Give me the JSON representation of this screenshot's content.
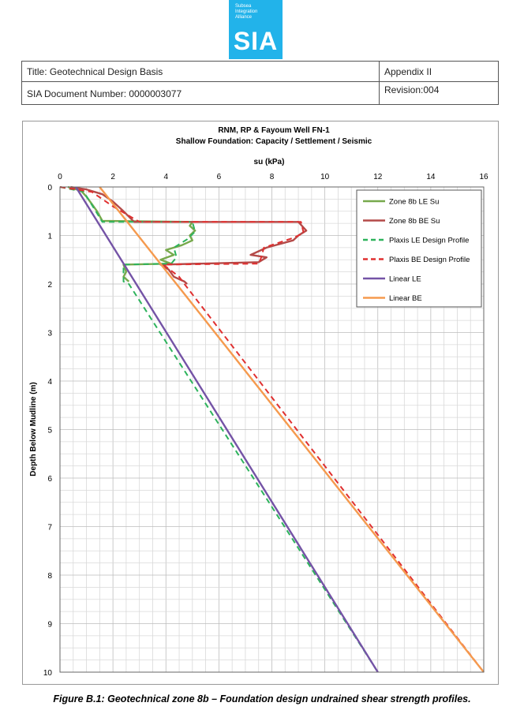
{
  "logo": {
    "small_lines": [
      "Subsea",
      "Integration",
      "Alliance"
    ],
    "big_text": "SIA"
  },
  "header": {
    "title": "Title: Geotechnical Design Basis",
    "appendix": "Appendix II",
    "doc_number": "SIA Document Number: 0000003077",
    "revision": "Revision:004"
  },
  "chart_data": {
    "type": "line",
    "title": "RNM, RP & Fayoum Well FN-1",
    "subtitle": "Shallow Foundation: Capacity / Settlement / Seismic",
    "xlabel": "su (kPa)",
    "ylabel": "Depth Below Mudline (m)",
    "xlim": [
      0,
      16
    ],
    "ylim": [
      10,
      0
    ],
    "x_axis_position": "top",
    "y_inverted": true,
    "x_ticks": [
      0,
      2,
      4,
      6,
      8,
      10,
      12,
      14,
      16
    ],
    "y_ticks": [
      0,
      1,
      2,
      3,
      4,
      5,
      6,
      7,
      8,
      9,
      10
    ],
    "grid": true,
    "legend_position": "top-right",
    "series": [
      {
        "name": "Zone 8b LE Su",
        "color": "#77a94c",
        "style": "solid",
        "points": [
          [
            0.3,
            0
          ],
          [
            0.8,
            0.08
          ],
          [
            1.0,
            0.2
          ],
          [
            1.2,
            0.35
          ],
          [
            1.4,
            0.5
          ],
          [
            1.6,
            0.7
          ],
          [
            5.0,
            0.72
          ],
          [
            4.9,
            0.8
          ],
          [
            5.1,
            0.9
          ],
          [
            4.9,
            1.0
          ],
          [
            5.0,
            1.1
          ],
          [
            4.6,
            1.2
          ],
          [
            4.0,
            1.3
          ],
          [
            4.3,
            1.4
          ],
          [
            3.8,
            1.5
          ],
          [
            4.2,
            1.58
          ],
          [
            2.4,
            1.6
          ],
          [
            2.5,
            1.75
          ],
          [
            2.4,
            1.85
          ],
          [
            2.6,
            1.95
          ]
        ]
      },
      {
        "name": "Zone 8b BE Su",
        "color": "#b44a48",
        "style": "solid",
        "points": [
          [
            0.4,
            0
          ],
          [
            1.0,
            0.05
          ],
          [
            1.6,
            0.15
          ],
          [
            2.0,
            0.3
          ],
          [
            2.4,
            0.5
          ],
          [
            2.8,
            0.72
          ],
          [
            9.0,
            0.72
          ],
          [
            9.3,
            0.9
          ],
          [
            9.0,
            1.0
          ],
          [
            8.8,
            1.1
          ],
          [
            7.8,
            1.25
          ],
          [
            7.2,
            1.4
          ],
          [
            7.8,
            1.45
          ],
          [
            7.5,
            1.55
          ],
          [
            3.8,
            1.6
          ],
          [
            4.1,
            1.7
          ],
          [
            4.3,
            1.85
          ],
          [
            4.7,
            1.95
          ],
          [
            4.8,
            2.0
          ]
        ]
      },
      {
        "name": "Plaxis LE Design Profile",
        "color": "#2db35c",
        "style": "dashed",
        "points": [
          [
            0.0,
            0
          ],
          [
            0.9,
            0.1
          ],
          [
            1.6,
            0.72
          ],
          [
            5.0,
            0.72
          ],
          [
            5.1,
            0.92
          ],
          [
            4.8,
            1.08
          ],
          [
            4.3,
            1.25
          ],
          [
            4.4,
            1.45
          ],
          [
            4.2,
            1.58
          ],
          [
            2.4,
            1.6
          ],
          [
            2.4,
            1.95
          ],
          [
            2.6,
            2.0
          ],
          [
            12.0,
            10.0
          ]
        ]
      },
      {
        "name": "Plaxis BE Design Profile",
        "color": "#e03030",
        "style": "dashed",
        "points": [
          [
            0.0,
            0
          ],
          [
            1.2,
            0.1
          ],
          [
            2.0,
            0.4
          ],
          [
            3.0,
            0.72
          ],
          [
            9.1,
            0.72
          ],
          [
            9.2,
            0.95
          ],
          [
            8.8,
            1.05
          ],
          [
            7.7,
            1.25
          ],
          [
            7.6,
            1.45
          ],
          [
            7.5,
            1.58
          ],
          [
            3.9,
            1.6
          ],
          [
            4.5,
            1.85
          ],
          [
            4.7,
            2.0
          ],
          [
            16.0,
            10.0
          ]
        ]
      },
      {
        "name": "Linear LE",
        "color": "#7453a6",
        "style": "solid",
        "points": [
          [
            0.6,
            0
          ],
          [
            12.0,
            10.0
          ]
        ]
      },
      {
        "name": "Linear BE",
        "color": "#f59a4e",
        "style": "solid",
        "points": [
          [
            1.5,
            0
          ],
          [
            16.0,
            10.0
          ]
        ]
      }
    ]
  },
  "caption": "Figure B.1: Geotechnical zone 8b – Foundation design undrained shear strength profiles."
}
